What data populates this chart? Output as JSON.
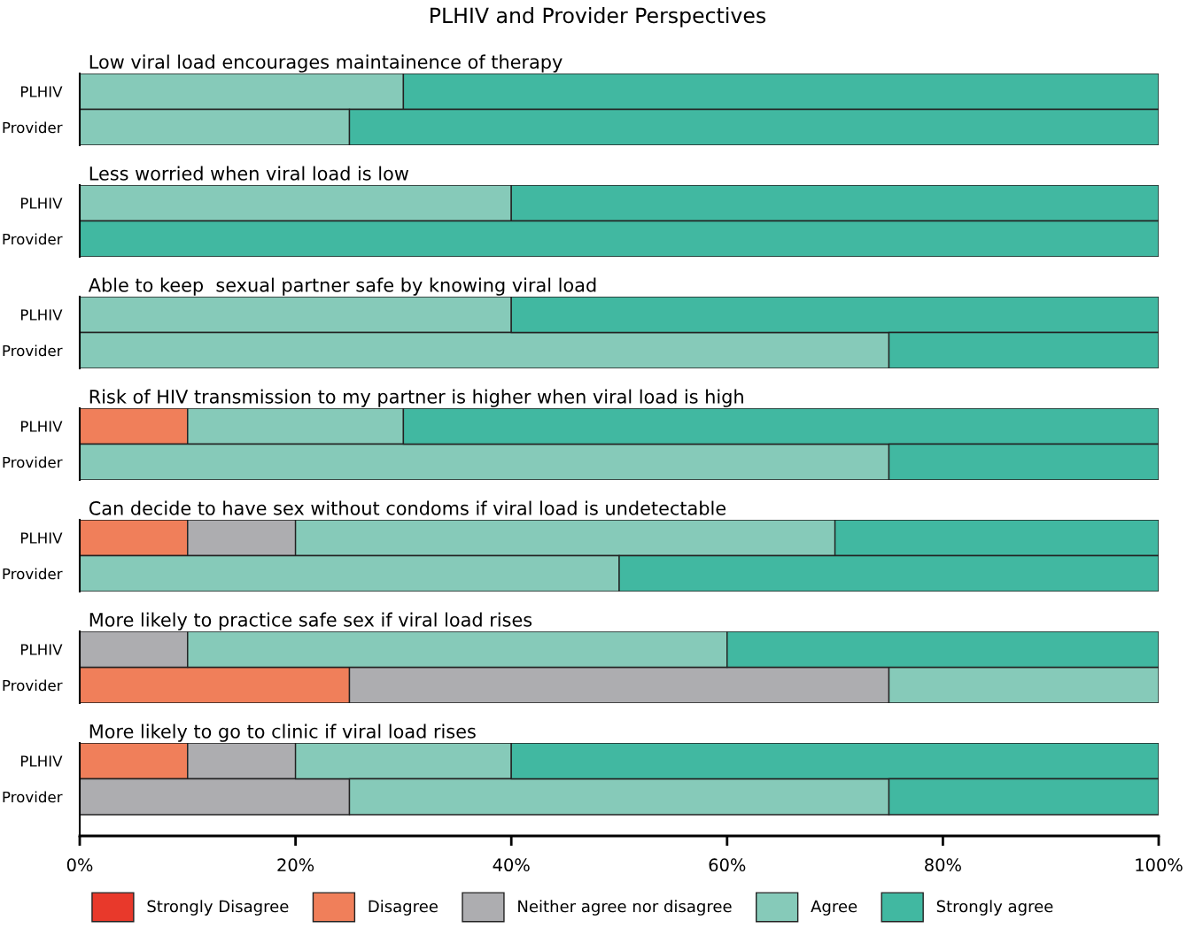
{
  "chart_data": [
    {
      "type": "bar",
      "orientation": "horizontal",
      "stacked": true,
      "title": "PLHIV and Provider Perspectives",
      "subtitle": "Low viral load encourages maintainence of therapy",
      "categories": [
        "PLHIV",
        "Provider"
      ],
      "xlim": [
        0,
        100
      ],
      "tick_labels": "y",
      "series": [
        {
          "color": "#86cab9",
          "values": [
            30,
            25
          ]
        },
        {
          "color": "#41b8a1",
          "values": [
            70,
            75
          ]
        }
      ]
    },
    {
      "type": "bar",
      "orientation": "horizontal",
      "stacked": true,
      "subtitle": "Less worried when viral load is low",
      "categories": [
        "PLHIV",
        "Provider"
      ],
      "xlim": [
        0,
        100
      ],
      "tick_labels": "y",
      "series": [
        {
          "color": "#86cab9",
          "values": [
            40,
            0
          ]
        },
        {
          "color": "#41b8a1",
          "values": [
            60,
            100
          ]
        }
      ]
    },
    {
      "type": "bar",
      "orientation": "horizontal",
      "stacked": true,
      "subtitle": "Able to keep  sexual partner safe by knowing viral load",
      "categories": [
        "PLHIV",
        "Provider"
      ],
      "xlim": [
        0,
        100
      ],
      "tick_labels": "y",
      "series": [
        {
          "color": "#86cab9",
          "values": [
            40,
            75
          ]
        },
        {
          "color": "#41b8a1",
          "values": [
            60,
            25
          ]
        }
      ]
    },
    {
      "type": "bar",
      "orientation": "horizontal",
      "stacked": true,
      "subtitle": "Risk of HIV transmission to my partner is higher when viral load is high",
      "categories": [
        "PLHIV",
        "Provider"
      ],
      "xlim": [
        0,
        100
      ],
      "tick_labels": "y",
      "series": [
        {
          "color": "#f07f5a",
          "values": [
            10,
            0
          ]
        },
        {
          "color": "#86cab9",
          "values": [
            20,
            75
          ]
        },
        {
          "color": "#41b8a1",
          "values": [
            70,
            25
          ]
        }
      ]
    },
    {
      "type": "bar",
      "orientation": "horizontal",
      "stacked": true,
      "subtitle": "Can decide to have sex without condoms if viral load is undetectable",
      "categories": [
        "PLHIV",
        "Provider"
      ],
      "xlim": [
        0,
        100
      ],
      "tick_labels": "y",
      "series": [
        {
          "color": "#f07f5a",
          "values": [
            10,
            0
          ]
        },
        {
          "color": "#adadb0",
          "values": [
            10,
            0
          ]
        },
        {
          "color": "#86cab9",
          "values": [
            50,
            50
          ]
        },
        {
          "color": "#41b8a1",
          "values": [
            30,
            50
          ]
        }
      ]
    },
    {
      "type": "bar",
      "orientation": "horizontal",
      "stacked": true,
      "subtitle": "More likely to practice safe sex if viral load rises",
      "categories": [
        "PLHIV",
        "Provider"
      ],
      "xlim": [
        0,
        100
      ],
      "tick_labels": "y",
      "series": [
        {
          "color": "#f07f5a",
          "values": [
            0,
            25
          ]
        },
        {
          "color": "#adadb0",
          "values": [
            10,
            50
          ]
        },
        {
          "color": "#86cab9",
          "values": [
            50,
            25
          ]
        },
        {
          "color": "#41b8a1",
          "values": [
            40,
            0
          ]
        }
      ]
    },
    {
      "type": "bar",
      "orientation": "horizontal",
      "stacked": true,
      "subtitle": "More likely to go to clinic if viral load rises",
      "categories": [
        "PLHIV",
        "Provider"
      ],
      "xlim": [
        0,
        100
      ],
      "xticks": [
        {
          "value": 0,
          "label": "0%"
        },
        {
          "value": 20,
          "label": "20%"
        },
        {
          "value": 40,
          "label": "40%"
        },
        {
          "value": 60,
          "label": "60%"
        },
        {
          "value": 80,
          "label": "80%"
        },
        {
          "value": 100,
          "label": "100%"
        }
      ],
      "legend": "bottom",
      "series": [
        {
          "name": "Strongly Disagree",
          "color": "#e8392b",
          "values": [
            0,
            0
          ]
        },
        {
          "name": "Disagree",
          "color": "#f07f5a",
          "values": [
            10,
            0
          ]
        },
        {
          "name": "Neither agree nor disagree",
          "color": "#adadb0",
          "values": [
            10,
            25
          ]
        },
        {
          "name": "Agree",
          "color": "#86cab9",
          "values": [
            20,
            50
          ]
        },
        {
          "name": "Strongly agree",
          "color": "#41b8a1",
          "values": [
            60,
            25
          ]
        }
      ]
    }
  ]
}
